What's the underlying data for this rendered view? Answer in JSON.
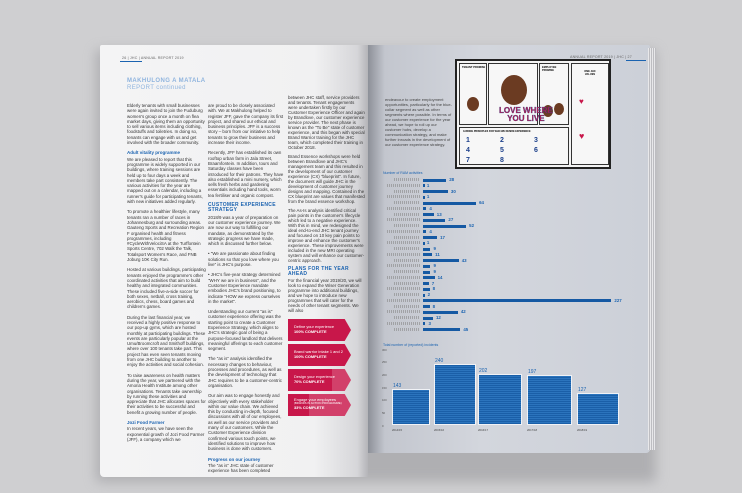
{
  "left_page": {
    "header": "26 | JHC | ANNUAL REPORT 2019",
    "title": "MAKHULONG A MATALA",
    "subtitle": "REPORT continued",
    "col1": [
      {
        "type": "p",
        "text": "Elderly tenants with small businesses were again invited to join the Fuduburg women's group once a month on flea market days, giving them an opportunity to sell various items including clothing, foodstuffs and toiletries. In doing so, tenants can engage with us and get involved with the broader community."
      },
      {
        "type": "h",
        "text": "Adult vitality programme"
      },
      {
        "type": "p",
        "text": "We are pleased to report that this programme is widely supported in our buildings, where training sessions are held up to four days a week and members take part consistently. The various activities for the year are mapped out on a calendar, including a runner's guide for participating tenants, with new initiatives added regularly."
      },
      {
        "type": "p",
        "text": "To promote a healthier lifestyle, many tenants ran a number of races in Johannesburg and surrounding areas. Gauteng Sports and Recreation Region F organised health and fitness programmes, including #CycleWithVelociSA at the Turffontein Sports Centre, 702 Walk the Talk, Totalsport Women's Race, and FNB Joburg 10K City Run."
      },
      {
        "type": "p",
        "text": "Hosted at various buildings, participating tenants enjoyed the programme's other coordinated activities that aim to build healthy and integrated communities. These included five-a-side soccer for both sexes, netball, cross training, aerobics, chess, board games and children's games."
      },
      {
        "type": "p",
        "text": "During the last financial year, we received a highly positive response to our pop-up gyms, which are hosted monthly at participating buildings. These events are particularly popular at the Umu/Broomcroft and Smithoff buildings, where over 100 tenants take part. This project has even seen tenants moving from one JHC building to another to enjoy the activities and social cohesion."
      },
      {
        "type": "p",
        "text": "To raise awareness on health matters during the year, we partnered with the Amoria Health Institute among other organisations. Tenants take ownership by running these activities and appreciate that JHC allocates spaces for their activities to be successful and benefit a growing number of people."
      },
      {
        "type": "h",
        "text": "Jozi Food Farmer"
      },
      {
        "type": "p",
        "text": "In recent years, we have seen the exponential growth of Jozi Food Farmer (JFF), a company which we"
      }
    ],
    "col2": [
      {
        "type": "p",
        "text": "are proud to be closely associated with. We at Makhulong helped to register JFF, gave the company its first project, and shared our ethical and business principles. JFF is a success story – born from our initiative to help tenants to grow their business and increase their income."
      },
      {
        "type": "p",
        "text": "Recently, JFF has established its own rooftop urban farm in Jala Street, Braamfontein. In addition, tours and Saturday classes have been introduced for their patrons. They have also established a mini nursery, which sells fresh herbs and gardening essentials including hand tools, worm tea fertiliser and organic compost."
      },
      {
        "type": "h2",
        "text": "CUSTOMER EXPERIENCE STRATEGY"
      },
      {
        "type": "p",
        "text": "2018/9 was a year of preparation on our customer experience journey. We are now our way to fulfilling our mandate, as demonstrated by the strategic progress we have made, which is discussed further below."
      },
      {
        "type": "p",
        "text": "• \"We are passionate about finding solutions so that you love where you live\" is JHC's purpose."
      },
      {
        "type": "p",
        "text": "• JHC's five-year strategy determined \"WHY we are in business\", and the Customer Experience mandate embodies JHC's brand positioning, to indicate \"HOW we express ourselves in the market\"."
      },
      {
        "type": "p",
        "text": "Understanding our current \"as is\" customer experience offering was the starting point to create a Customer Experience Strategy, which aligns to JHC's strategic goal of being a purpose-focused landlord that delivers meaningful offerings to each customer segment."
      },
      {
        "type": "p",
        "text": "The \"as is\" analysis identified the necessary changes to behaviour, processes and procedures, as well as the development of technology that JHC requires to be a customer-centric organisation."
      },
      {
        "type": "p",
        "text": "Our aim was to engage honestly and objectively with every stakeholder within our value chain. We achieved this by conducting in-depth, focused discussions with all of our employees, as well as our service providers and many of our customers. While the Customer Experience division confirmed various touch points, we identified solutions to improve how business is done with customers."
      },
      {
        "type": "h",
        "text": "Progress on our journey"
      },
      {
        "type": "p",
        "text": "The \"as is\" JHC state of customer experience has been completed"
      }
    ],
    "col3": [
      {
        "type": "p",
        "text": "between JHC staff, service providers and tenants. Tenant engagements were undertaken firstly by our Customer Experience Officer and again by Brandlove, our customer experience service provider. The next phase is known as the \"To Be\" state of customer experience, and this began with special Brand Warrior training for the JHC team, which completed their training in October 2018."
      },
      {
        "type": "p",
        "text": "Brand Essence workshops were held between Brandlove and JHC's management team and this resulted in the development of our customer experience (CX) \"blueprint\". In future, the document will guide JHC in the development of customer journey designs and mapping. Contained in the CX blueprint are values that manifested from the brand essence workshop."
      },
      {
        "type": "p",
        "text": "The As-Is analysis identified critical pain points in the customer's lifecycle which led to a negative experience. With this in mind, we redesigned the ideal end-to-end JHC tenant journey and focused on 10 key pain points to improve and enhance the customer's experience. These improvements were included in the new MRI operating system and will enhance our customer-centric approach."
      },
      {
        "type": "h2",
        "text": "PLANS FOR THE YEAR AHEAD"
      },
      {
        "type": "p",
        "text": "For the financial year 2019/20, we will look to expand the Wiser Generation programme into additional buildings, and we hope to introduce new programmes that will cater for the needs of other tenant segments. We will also"
      }
    ],
    "progress": [
      {
        "label": "Define your experience",
        "status": "100% COMPLETE",
        "percent": 100
      },
      {
        "label": "Brand warrior intake 1 and 2",
        "status": "100% COMPLETE",
        "percent": 100
      },
      {
        "label": "Design your experience",
        "status": "70% COMPLETE",
        "percent": 70
      },
      {
        "label": "Engage your employees",
        "sub": "(BRANDS IN ACTION PROGRAMME)",
        "status": "33% COMPLETE",
        "percent": 33
      }
    ],
    "colors": {
      "accent": "#1b63b0",
      "progress": "#c8174a"
    }
  },
  "right_page": {
    "header": "ANNUAL REPORT 2019 | JHC | 27",
    "intro": "endeavour to create employment opportunities, particularly for the blue-collar segment as well as other segments where possible. In terms of our customer experience for the year ahead, we hope to roll up our customer hubs, develop a communication strategy, and make further inroads in the development of our customer experience strategy.",
    "infographic": {
      "slogan_line1": "LOVE WHERE",
      "slogan_line2": "YOU LIVE",
      "panel_left": "TENANT PROMISE",
      "panel_right": "EMPLOYEE PROMISE",
      "badge": "ONE JHC VALUES",
      "principles_title": "GUIDING PRINCIPLES FOR WHO WE DESIRE EXPERIENCE",
      "numbers": [
        "1",
        "2",
        "3",
        "4",
        "5",
        "6",
        "7",
        "8"
      ]
    },
    "chart_data": [
      {
        "type": "bar",
        "orientation": "horizontal",
        "title": "Number of RAM activities",
        "values": [
          28,
          1,
          30,
          1,
          64,
          4,
          13,
          27,
          52,
          4,
          17,
          1,
          9,
          11,
          43,
          9,
          9,
          14,
          7,
          8,
          2,
          227,
          8,
          42,
          12,
          3,
          45
        ],
        "color": "#1559a3"
      },
      {
        "type": "bar",
        "title": "Total number of (reported) incidents",
        "categories": [
          "2014/15",
          "2015/16",
          "2016/17",
          "2017/18",
          "2018/19"
        ],
        "values": [
          143,
          240,
          202,
          197,
          127
        ],
        "yticks": [
          0,
          50,
          100,
          150,
          200,
          250,
          300
        ],
        "ylim": [
          0,
          300
        ],
        "color": "#1a5fa8"
      }
    ]
  }
}
